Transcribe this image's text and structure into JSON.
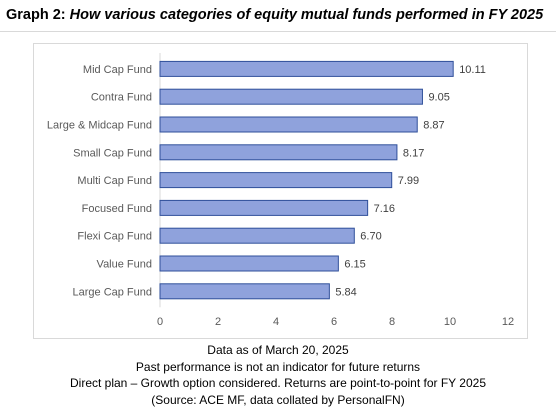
{
  "title": {
    "prefix": "Graph 2:",
    "text": "How various categories of equity mutual funds performed in FY 2025"
  },
  "footer": {
    "line1": "Data as of March 20, 2025",
    "line2": "Past performance is not an indicator for future returns",
    "line3": "Direct plan – Growth option considered. Returns are point-to-point for FY 2025",
    "line4": "(Source: ACE MF, data collated by PersonalFN)"
  },
  "colors": {
    "bar_fill": "#8fa2dc",
    "bar_edge": "#2f4f9a"
  },
  "chart_data": {
    "type": "bar",
    "orientation": "horizontal",
    "categories": [
      "Mid Cap Fund",
      "Contra Fund",
      "Large & Midcap Fund",
      "Small Cap Fund",
      "Multi Cap Fund",
      "Focused Fund",
      "Flexi Cap Fund",
      "Value Fund",
      "Large Cap Fund"
    ],
    "values": [
      10.11,
      9.05,
      8.87,
      8.17,
      7.99,
      7.16,
      6.7,
      6.15,
      5.84
    ],
    "value_labels": [
      "10.11",
      "9.05",
      "8.87",
      "8.17",
      "7.99",
      "7.16",
      "6.70",
      "6.15",
      "5.84"
    ],
    "xlim": [
      0,
      12
    ],
    "xticks": [
      0,
      2,
      4,
      6,
      8,
      10,
      12
    ],
    "grid": false,
    "legend": "none"
  }
}
